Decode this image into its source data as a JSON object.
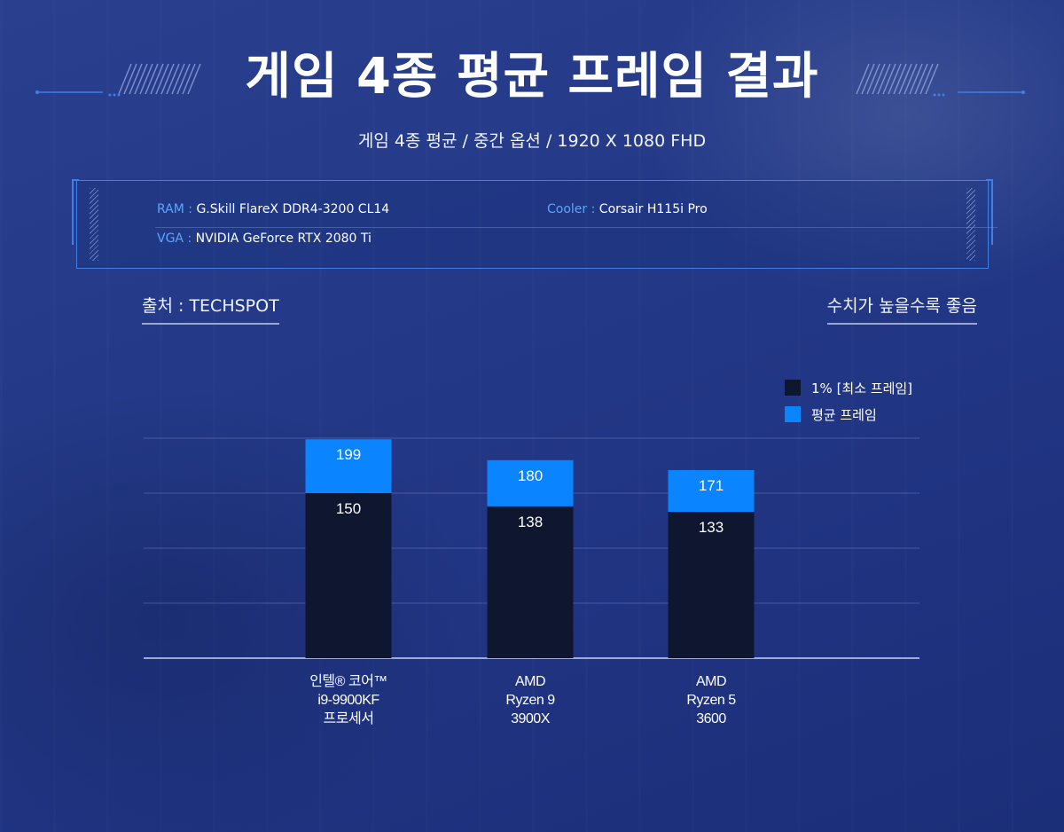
{
  "header": {
    "title": "게임 4종 평균 프레임 결과",
    "subtitle": "게임 4종 평균 / 중간 옵션 / 1920 X 1080 FHD"
  },
  "specs": {
    "ram_key": "RAM :",
    "ram_value": "G.Skill FlareX DDR4-3200 CL14",
    "cooler_key": "Cooler :",
    "cooler_value": "Corsair H115i Pro",
    "vga_key": "VGA :",
    "vga_value": "NVIDIA GeForce RTX 2080 Ti"
  },
  "source_label": "출처 : TECHSPOT",
  "better_label": "수치가 높을수록 좋음",
  "legend": [
    {
      "label": "1% [최소 프레임]",
      "color": "#0e1630"
    },
    {
      "label": "평균 프레임",
      "color": "#0a84ff"
    }
  ],
  "chart_data": {
    "type": "bar",
    "stacking": "overlay",
    "categories": [
      [
        "인텔® 코어™",
        "i9-9900KF",
        "프로세서"
      ],
      [
        "AMD",
        "Ryzen 9",
        "3900X"
      ],
      [
        "AMD",
        "Ryzen 5",
        "3600"
      ]
    ],
    "series": [
      {
        "name": "평균 프레임",
        "values": [
          199,
          180,
          171
        ],
        "color": "#0a84ff"
      },
      {
        "name": "1% [최소 프레임]",
        "values": [
          150,
          138,
          133
        ],
        "color": "#0e1630"
      }
    ],
    "ylim": [
      0,
      200
    ],
    "grid": true,
    "legend_position": "top-right",
    "xlabel": "",
    "ylabel": ""
  }
}
